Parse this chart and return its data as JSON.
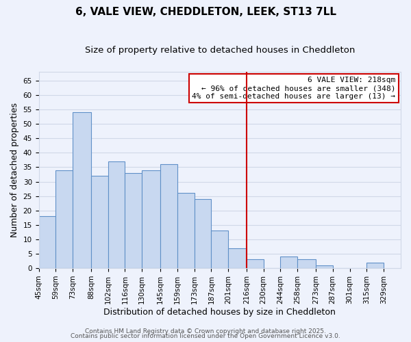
{
  "title": "6, VALE VIEW, CHEDDLETON, LEEK, ST13 7LL",
  "subtitle": "Size of property relative to detached houses in Cheddleton",
  "xlabel": "Distribution of detached houses by size in Cheddleton",
  "ylabel": "Number of detached properties",
  "bar_left_edges": [
    45,
    59,
    73,
    88,
    102,
    116,
    130,
    145,
    159,
    173,
    187,
    201,
    216,
    230,
    244,
    258,
    273,
    287,
    301,
    315
  ],
  "bar_widths": [
    14,
    14,
    15,
    14,
    14,
    14,
    15,
    14,
    14,
    14,
    14,
    15,
    14,
    14,
    14,
    15,
    14,
    14,
    14,
    14
  ],
  "bar_heights": [
    18,
    34,
    54,
    32,
    37,
    33,
    34,
    36,
    26,
    24,
    13,
    7,
    3,
    0,
    4,
    3,
    1,
    0,
    0,
    2
  ],
  "bar_color": "#c8d8f0",
  "bar_edgecolor": "#6090c8",
  "xlim": [
    45,
    343
  ],
  "ylim": [
    0,
    68
  ],
  "yticks": [
    0,
    5,
    10,
    15,
    20,
    25,
    30,
    35,
    40,
    45,
    50,
    55,
    60,
    65
  ],
  "xtick_labels": [
    "45sqm",
    "59sqm",
    "73sqm",
    "88sqm",
    "102sqm",
    "116sqm",
    "130sqm",
    "145sqm",
    "159sqm",
    "173sqm",
    "187sqm",
    "201sqm",
    "216sqm",
    "230sqm",
    "244sqm",
    "258sqm",
    "273sqm",
    "287sqm",
    "301sqm",
    "315sqm",
    "329sqm"
  ],
  "xtick_positions": [
    45,
    59,
    73,
    88,
    102,
    116,
    130,
    145,
    159,
    173,
    187,
    201,
    216,
    230,
    244,
    258,
    273,
    287,
    301,
    315,
    329
  ],
  "vline_x": 216,
  "vline_color": "#cc0000",
  "annotation_title": "6 VALE VIEW: 218sqm",
  "annotation_line1": "← 96% of detached houses are smaller (348)",
  "annotation_line2": "4% of semi-detached houses are larger (13) →",
  "grid_color": "#d0d8e8",
  "background_color": "#eef2fc",
  "footer1": "Contains HM Land Registry data © Crown copyright and database right 2025.",
  "footer2": "Contains public sector information licensed under the Open Government Licence v3.0.",
  "title_fontsize": 11,
  "subtitle_fontsize": 9.5,
  "axis_label_fontsize": 9,
  "tick_fontsize": 7.5,
  "annotation_fontsize": 8,
  "footer_fontsize": 6.5
}
